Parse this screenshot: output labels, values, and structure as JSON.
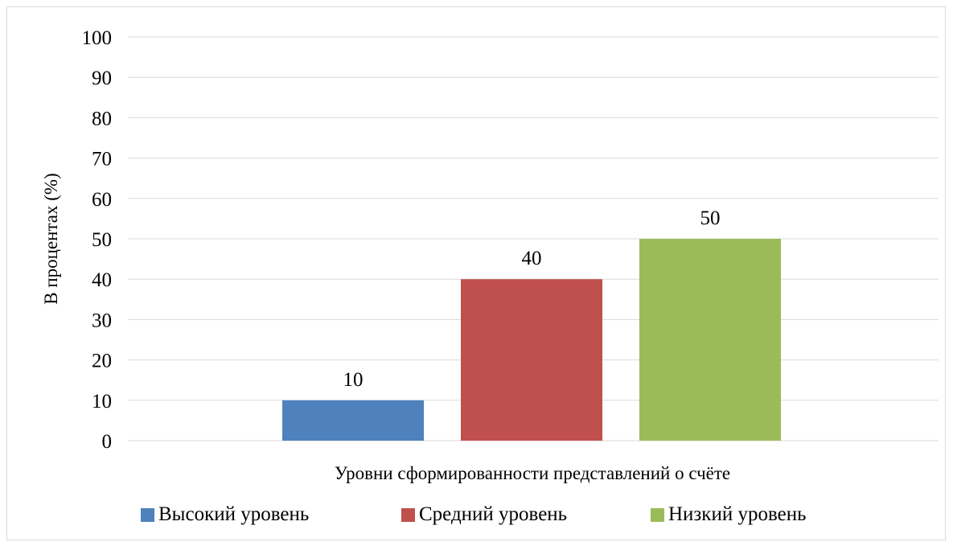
{
  "chart_data": {
    "type": "bar",
    "title": "",
    "xlabel": "Уровни сформированности представлений о счёте",
    "ylabel": "В процентах (%)",
    "ylim": [
      0,
      100
    ],
    "yticks": [
      0,
      10,
      20,
      30,
      40,
      50,
      60,
      70,
      80,
      90,
      100
    ],
    "grid": true,
    "legend_position": "bottom",
    "series": [
      {
        "name": "Высокий уровень",
        "values": [
          10
        ],
        "color": "#4f81bd"
      },
      {
        "name": "Средний уровень",
        "values": [
          40
        ],
        "color": "#c0504d"
      },
      {
        "name": "Низкий уровень",
        "values": [
          50
        ],
        "color": "#9bbb59"
      }
    ]
  }
}
